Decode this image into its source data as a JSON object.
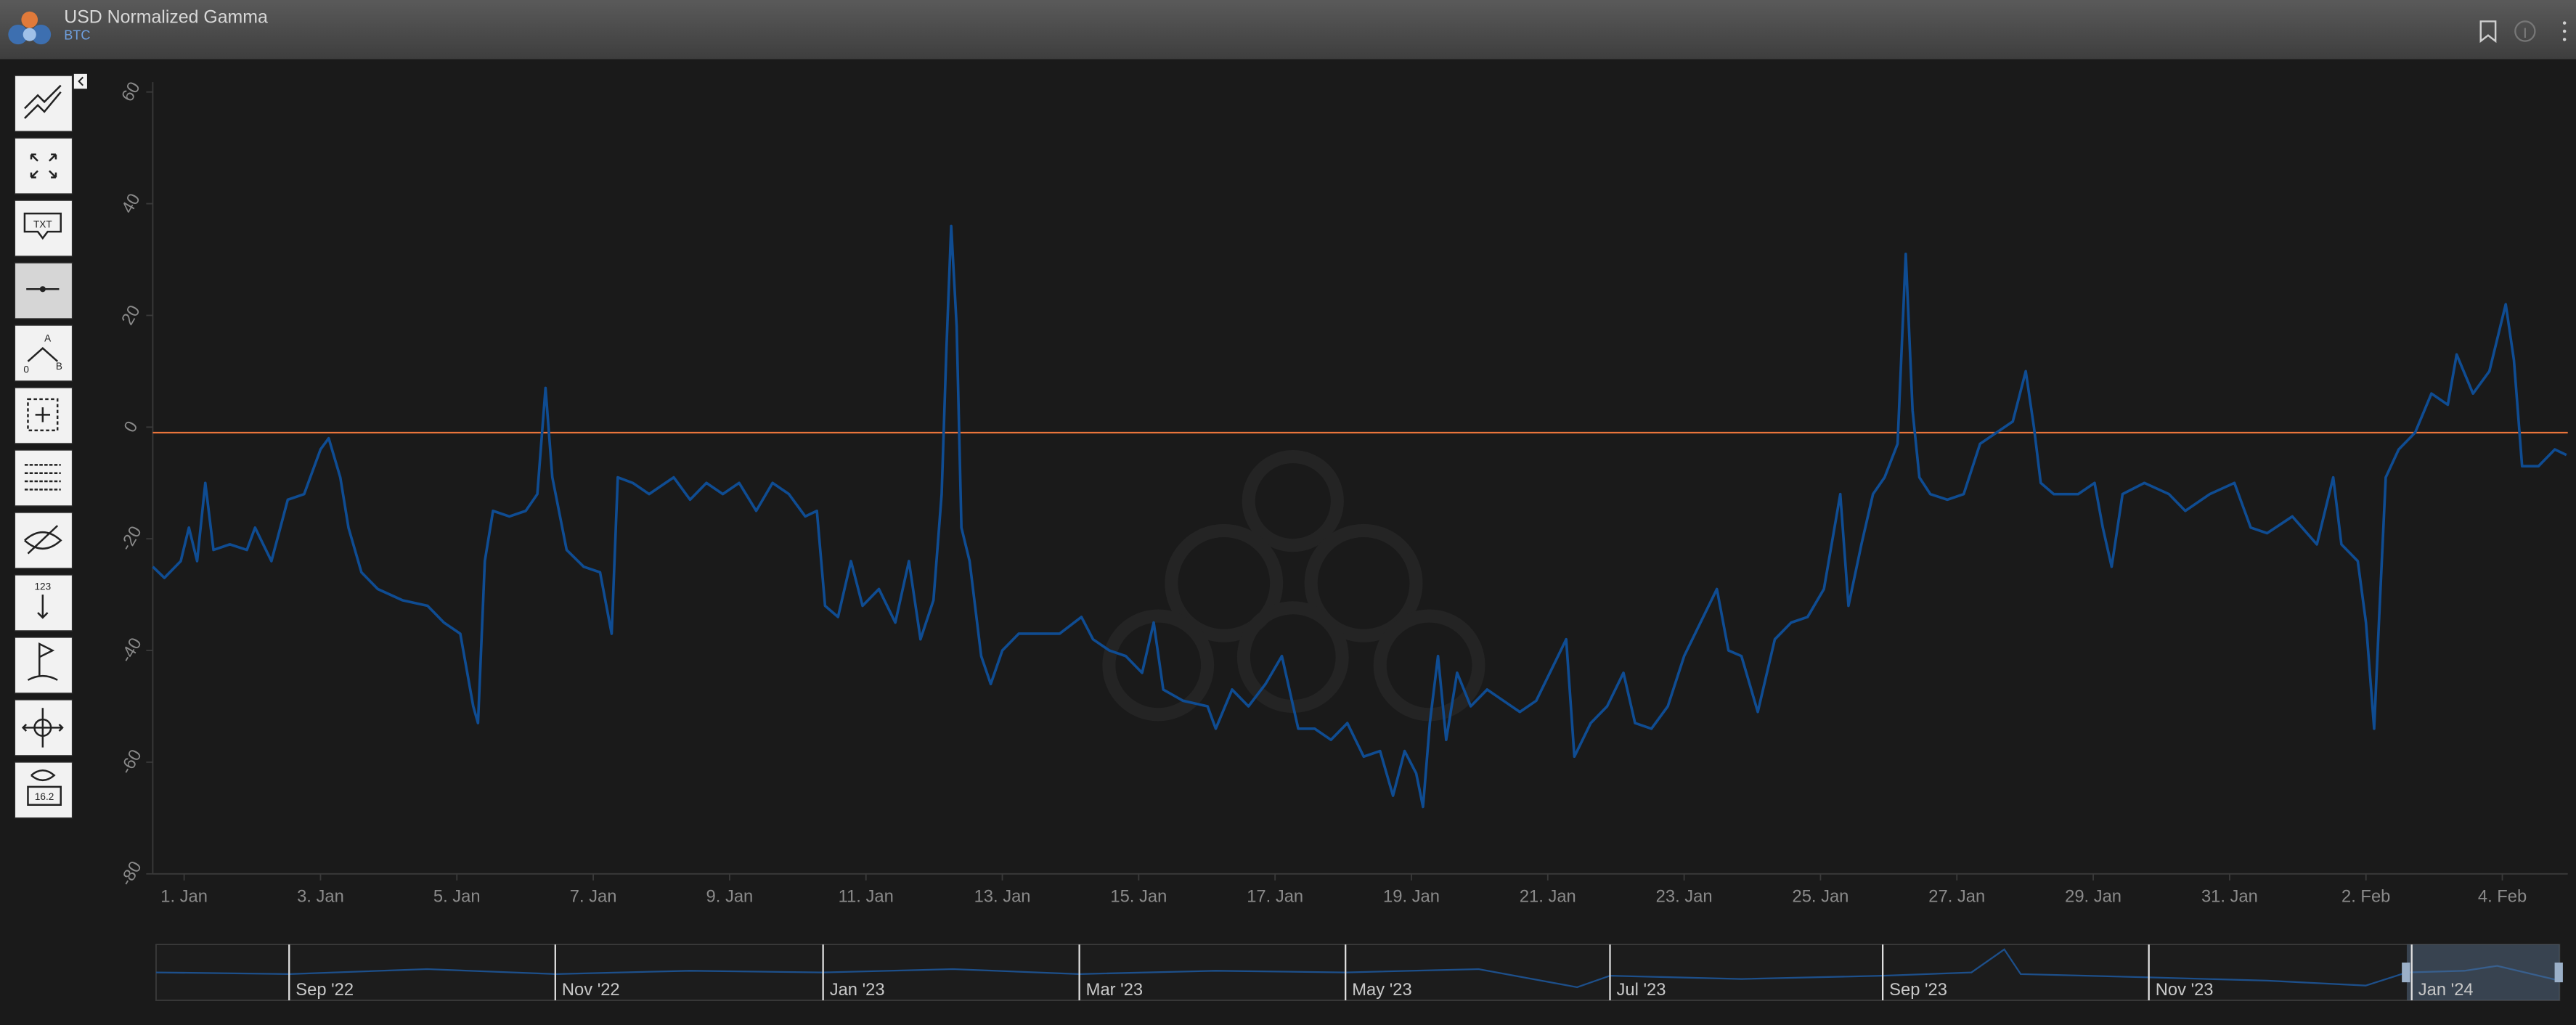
{
  "header": {
    "title": "USD Normalized Gamma",
    "subtitle": "BTC"
  },
  "toolbar": {
    "text_tool": "TXT",
    "label_a": "A",
    "label_zero": "0",
    "label_b": "B",
    "counter": "123",
    "price": "16.2"
  },
  "navigator": {
    "labels": [
      "Sep '22",
      "Nov '22",
      "Jan '23",
      "Mar '23",
      "May '23",
      "Jul '23",
      "Sep '23",
      "Nov '23",
      "Jan '24"
    ]
  },
  "chart_data": {
    "type": "line",
    "color": "#0f4c92",
    "x": [
      0.54,
      0.71,
      0.95,
      1.07,
      1.19,
      1.31,
      1.43,
      1.67,
      1.92,
      2.04,
      2.28,
      2.52,
      2.76,
      3.0,
      3.12,
      3.29,
      3.41,
      3.6,
      3.84,
      4.2,
      4.57,
      4.81,
      5.05,
      5.24,
      5.31,
      5.41,
      5.53,
      5.77,
      6.01,
      6.18,
      6.3,
      6.4,
      6.61,
      6.86,
      7.1,
      7.27,
      7.36,
      7.58,
      7.82,
      8.06,
      8.18,
      8.42,
      8.66,
      8.9,
      9.14,
      9.39,
      9.63,
      9.87,
      10.11,
      10.28,
      10.4,
      10.59,
      10.78,
      10.95,
      11.19,
      11.43,
      11.63,
      11.8,
      11.99,
      12.11,
      12.18,
      12.25,
      12.33,
      12.4,
      12.52,
      12.69,
      12.83,
      13.0,
      13.24,
      13.48,
      13.84,
      14.16,
      14.33,
      14.57,
      14.81,
      15.05,
      15.22,
      15.36,
      15.65,
      16.01,
      16.13,
      16.37,
      16.61,
      16.86,
      17.1,
      17.34,
      17.58,
      17.82,
      18.06,
      18.3,
      18.54,
      18.73,
      18.9,
      19.07,
      19.17,
      19.27,
      19.39,
      19.51,
      19.67,
      19.87,
      20.11,
      20.35,
      20.59,
      20.83,
      21.07,
      21.27,
      21.39,
      21.63,
      21.87,
      22.11,
      22.28,
      22.52,
      22.76,
      23.0,
      23.24,
      23.48,
      23.65,
      23.84,
      24.08,
      24.33,
      24.57,
      24.81,
      25.05,
      25.29,
      25.41,
      25.6,
      25.77,
      25.94,
      26.13,
      26.25,
      26.35,
      26.45,
      26.61,
      26.86,
      27.1,
      27.34,
      27.58,
      27.82,
      28.01,
      28.13,
      28.23,
      28.42,
      28.78,
      29.02,
      29.14,
      29.27,
      29.43,
      29.75,
      30.11,
      30.35,
      30.71,
      31.07,
      31.31,
      31.55,
      31.92,
      32.28,
      32.52,
      32.64,
      32.88,
      33.0,
      33.12,
      33.19,
      33.29,
      33.48,
      33.72,
      33.96,
      34.2,
      34.33,
      34.57,
      34.81,
      35.05,
      35.17,
      35.29,
      35.53,
      35.77,
      35.94
    ],
    "values": [
      -25,
      -27,
      -24,
      -18,
      -24,
      -10,
      -22,
      -21,
      -22,
      -18,
      -24,
      -13,
      -12,
      -4,
      -2,
      -9,
      -18,
      -26,
      -29,
      -31,
      -32,
      -35,
      -37,
      -50,
      -53,
      -24,
      -15,
      -16,
      -15,
      -12,
      7,
      -9,
      -22,
      -25,
      -26,
      -37,
      -9,
      -10,
      -12,
      -10,
      -9,
      -13,
      -10,
      -12,
      -10,
      -15,
      -10,
      -12,
      -16,
      -15,
      -32,
      -34,
      -24,
      -32,
      -29,
      -35,
      -24,
      -38,
      -31,
      -12,
      14,
      36,
      18,
      -18,
      -24,
      -41,
      -46,
      -40,
      -37,
      -37,
      -37,
      -34,
      -38,
      -40,
      -41,
      -44,
      -35,
      -47,
      -49,
      -50,
      -54,
      -47,
      -50,
      -46,
      -41,
      -54,
      -54,
      -56,
      -53,
      -59,
      -58,
      -66,
      -58,
      -62,
      -68,
      -53,
      -41,
      -56,
      -44,
      -50,
      -47,
      -49,
      -51,
      -49,
      -43,
      -38,
      -59,
      -53,
      -50,
      -44,
      -53,
      -54,
      -50,
      -41,
      -35,
      -29,
      -40,
      -41,
      -51,
      -38,
      -35,
      -34,
      -29,
      -12,
      -32,
      -21,
      -12,
      -9,
      -3,
      31,
      3,
      -9,
      -12,
      -13,
      -12,
      -3,
      -1,
      1,
      10,
      0,
      -10,
      -12,
      -12,
      -10,
      -18,
      -25,
      -12,
      -10,
      -12,
      -15,
      -12,
      -10,
      -18,
      -19,
      -16,
      -21,
      -9,
      -21,
      -24,
      -35,
      -54,
      -35,
      -9,
      -4,
      -1,
      6,
      4,
      13,
      6,
      10,
      22,
      12,
      -7,
      -7,
      -4,
      -5
    ],
    "xlim": [
      0.54,
      35.96
    ],
    "xticks": [
      {
        "value": 1,
        "label": "1. Jan"
      },
      {
        "value": 3,
        "label": "3. Jan"
      },
      {
        "value": 5,
        "label": "5. Jan"
      },
      {
        "value": 7,
        "label": "7. Jan"
      },
      {
        "value": 9,
        "label": "9. Jan"
      },
      {
        "value": 11,
        "label": "11. Jan"
      },
      {
        "value": 13,
        "label": "13. Jan"
      },
      {
        "value": 15,
        "label": "15. Jan"
      },
      {
        "value": 17,
        "label": "17. Jan"
      },
      {
        "value": 19,
        "label": "19. Jan"
      },
      {
        "value": 21,
        "label": "21. Jan"
      },
      {
        "value": 23,
        "label": "23. Jan"
      },
      {
        "value": 25,
        "label": "25. Jan"
      },
      {
        "value": 27,
        "label": "27. Jan"
      },
      {
        "value": 29,
        "label": "29. Jan"
      },
      {
        "value": 31,
        "label": "31. Jan"
      },
      {
        "value": 33,
        "label": "2. Feb"
      },
      {
        "value": 35,
        "label": "4. Feb"
      }
    ],
    "ylim": [
      -80,
      60
    ],
    "yticks": [
      -80,
      -60,
      -40,
      -20,
      0,
      20,
      40,
      60
    ],
    "plot_line": -1,
    "plot_line_color": "#e8743b",
    "grid": false
  }
}
